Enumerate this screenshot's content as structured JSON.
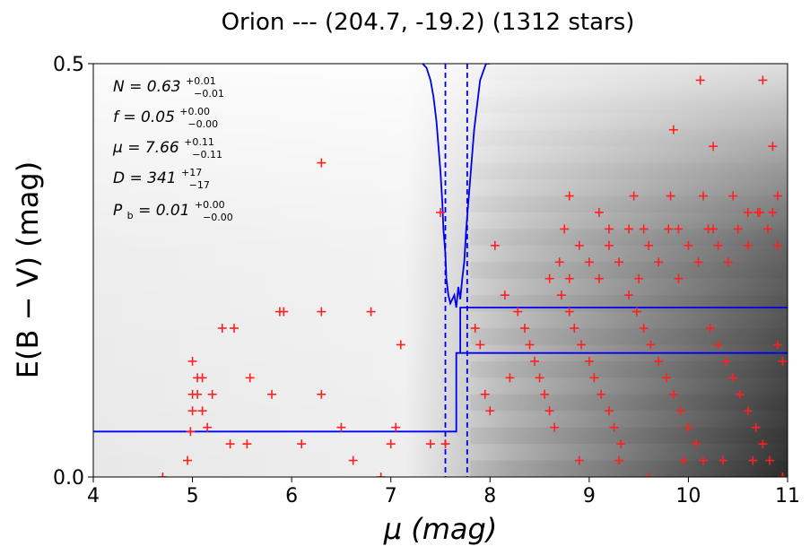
{
  "chart_data": {
    "type": "scatter",
    "title": "Orion --- (204.7, -19.2) (1312 stars)",
    "xlabel": "μ (mag)",
    "ylabel": "E(B − V) (mag)",
    "xlim": [
      4,
      11
    ],
    "ylim": [
      0,
      0.5
    ],
    "x_ticks": [
      "4",
      "5",
      "6",
      "7",
      "8",
      "9",
      "10",
      "11"
    ],
    "y_ticks": [
      "0.0",
      "0.5"
    ],
    "x_tick_values": [
      4,
      5,
      6,
      7,
      8,
      9,
      10,
      11
    ],
    "y_tick_values": [
      0.0,
      0.5
    ],
    "grid": false,
    "background": "grayscale probability density map (darker = higher density, increasing toward large μ)",
    "colors": {
      "stars": "#ff2020",
      "model": "#0000ee",
      "frame": "#000000"
    },
    "annotations": {
      "N": {
        "label": "N = 0.63",
        "plus": "+0.01",
        "minus": "−0.01"
      },
      "f": {
        "label": "f = 0.05",
        "plus": "+0.00",
        "minus": "−0.00"
      },
      "mu": {
        "label": "μ = 7.66",
        "plus": "+0.11",
        "minus": "−0.11"
      },
      "D": {
        "label": "D = 341",
        "plus": "+17",
        "minus": "−17"
      },
      "Pb": {
        "label": "P",
        "sub": "b",
        "rest": " = 0.01",
        "plus": "+0.00",
        "minus": "−0.00"
      }
    },
    "model_step": {
      "description": "best-fit extinction jump at μ = 7.66",
      "before": 0.055,
      "after": 0.15,
      "after_band_upper": 0.205,
      "jump_mu": 7.66,
      "band_mu_start": 7.7
    },
    "mu_confidence_lines": [
      7.55,
      7.77
    ],
    "posterior_curve": {
      "description": "posterior distribution of μ (blue), peaked between the dashed lines",
      "x": [
        7.32,
        7.36,
        7.4,
        7.43,
        7.46,
        7.48,
        7.5,
        7.52,
        7.53,
        7.55,
        7.56,
        7.58,
        7.6,
        7.62,
        7.64,
        7.66,
        7.68,
        7.7,
        7.72,
        7.74,
        7.76,
        7.78,
        7.8,
        7.82,
        7.84,
        7.86,
        7.88,
        7.9,
        7.93,
        7.96,
        8.0
      ],
      "y": [
        0.5,
        0.495,
        0.48,
        0.46,
        0.43,
        0.4,
        0.37,
        0.33,
        0.3,
        0.27,
        0.24,
        0.22,
        0.21,
        0.215,
        0.22,
        0.205,
        0.23,
        0.215,
        0.24,
        0.26,
        0.3,
        0.33,
        0.36,
        0.39,
        0.42,
        0.44,
        0.46,
        0.48,
        0.49,
        0.5,
        0.5
      ]
    },
    "stars": {
      "x": [
        4.7,
        4.95,
        4.98,
        5.0,
        5.05,
        5.1,
        5.15,
        5.38,
        5.55,
        6.1,
        6.3,
        6.5,
        6.62,
        6.9,
        7.0,
        7.05,
        7.4,
        5.0,
        5.05,
        5.2,
        5.0,
        5.1,
        5.3,
        5.42,
        5.58,
        5.8,
        5.88,
        5.92,
        6.3,
        6.8,
        7.1,
        7.5,
        6.3,
        7.55,
        7.85,
        7.9,
        7.95,
        8.0,
        8.05,
        8.15,
        8.2,
        8.28,
        8.35,
        8.4,
        8.45,
        8.5,
        8.55,
        8.6,
        8.65,
        8.72,
        8.8,
        8.85,
        8.92,
        9.0,
        9.05,
        9.12,
        9.2,
        9.25,
        9.32,
        9.4,
        9.48,
        9.55,
        9.62,
        9.7,
        9.78,
        9.85,
        9.92,
        10.0,
        10.08,
        10.15,
        10.22,
        10.3,
        10.38,
        10.45,
        10.52,
        10.6,
        10.68,
        10.75,
        10.82,
        10.9,
        10.95,
        8.6,
        8.7,
        8.8,
        8.9,
        9.0,
        9.1,
        9.2,
        9.3,
        9.4,
        9.5,
        9.6,
        9.7,
        9.8,
        9.9,
        10.0,
        10.1,
        10.2,
        10.3,
        10.4,
        10.5,
        10.6,
        10.7,
        10.8,
        10.9,
        8.8,
        9.1,
        9.45,
        9.82,
        10.15,
        10.45,
        10.72,
        10.9,
        8.75,
        9.2,
        9.55,
        9.9,
        10.25,
        10.6,
        10.85,
        9.85,
        10.25,
        10.75,
        10.12,
        10.85,
        8.9,
        9.3,
        9.6,
        9.95,
        10.35,
        10.65,
        10.95
      ],
      "y": [
        0.0,
        0.02,
        0.055,
        0.08,
        0.1,
        0.12,
        0.06,
        0.04,
        0.04,
        0.04,
        0.38,
        0.06,
        0.02,
        0.0,
        0.04,
        0.06,
        0.04,
        0.14,
        0.12,
        0.1,
        0.1,
        0.08,
        0.18,
        0.18,
        0.12,
        0.1,
        0.2,
        0.2,
        0.2,
        0.2,
        0.16,
        0.32,
        0.1,
        0.04,
        0.18,
        0.16,
        0.1,
        0.08,
        0.28,
        0.22,
        0.12,
        0.2,
        0.18,
        0.16,
        0.14,
        0.12,
        0.1,
        0.08,
        0.06,
        0.22,
        0.2,
        0.18,
        0.16,
        0.14,
        0.12,
        0.1,
        0.08,
        0.06,
        0.04,
        0.22,
        0.2,
        0.18,
        0.16,
        0.14,
        0.12,
        0.1,
        0.08,
        0.06,
        0.04,
        0.02,
        0.18,
        0.16,
        0.14,
        0.12,
        0.1,
        0.08,
        0.06,
        0.04,
        0.02,
        0.16,
        0.14,
        0.24,
        0.26,
        0.24,
        0.28,
        0.26,
        0.24,
        0.28,
        0.26,
        0.3,
        0.24,
        0.28,
        0.26,
        0.3,
        0.24,
        0.28,
        0.26,
        0.3,
        0.28,
        0.26,
        0.3,
        0.28,
        0.32,
        0.3,
        0.28,
        0.34,
        0.32,
        0.34,
        0.34,
        0.34,
        0.34,
        0.32,
        0.34,
        0.3,
        0.3,
        0.3,
        0.3,
        0.3,
        0.32,
        0.32,
        0.42,
        0.4,
        0.48,
        0.48,
        0.4,
        0.02,
        0.02,
        0.0,
        0.02,
        0.02,
        0.02,
        0.0
      ]
    }
  }
}
